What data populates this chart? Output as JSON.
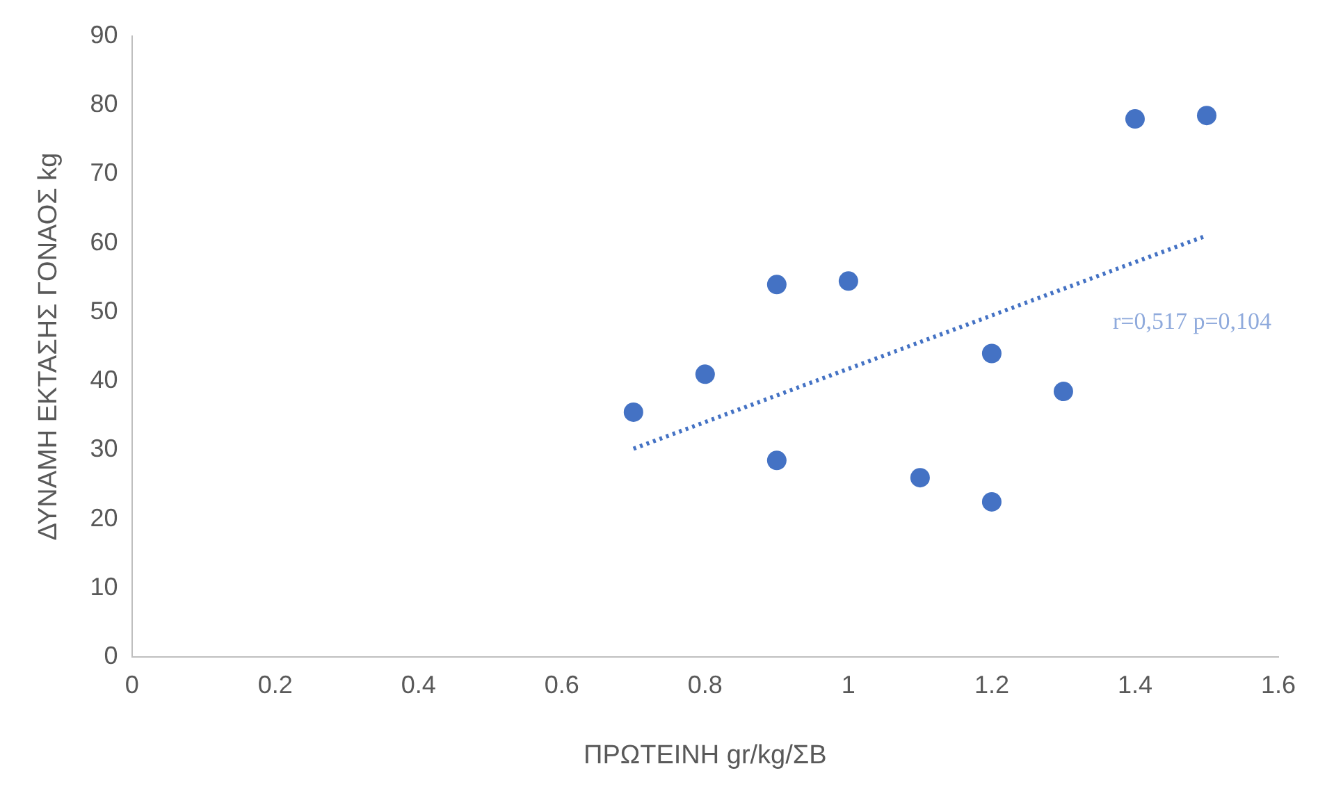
{
  "chart_data": {
    "type": "scatter",
    "xlabel": "ΠΡΩΤΕΙΝΗ gr/kg/ΣΒ",
    "ylabel": "ΔΥΝΑΜΗ ΕΚΤΑΣΗΣ ΓΟΝΑΟΣ kg",
    "series": [
      {
        "type": "scatter",
        "color": "#4472c4",
        "marker": "circle",
        "x": [
          0.7,
          0.8,
          0.9,
          0.9,
          1.0,
          1.1,
          1.2,
          1.2,
          1.3,
          1.4,
          1.5
        ],
        "values": [
          35.5,
          41,
          54,
          28.5,
          54.5,
          26,
          44,
          22.5,
          38.5,
          78,
          78.5
        ]
      },
      {
        "type": "line",
        "color": "#4472c4",
        "marker": "none",
        "line_style": "dotted",
        "x": [
          0.7,
          1.5
        ],
        "values": [
          30.2,
          61.1
        ]
      }
    ],
    "annotations": [
      "r=0,517 p=0,104"
    ],
    "xlim": [
      0,
      1.6
    ],
    "xticks": [
      0,
      0.2,
      0.4,
      0.6,
      0.8,
      1,
      1.2,
      1.4,
      1.6
    ],
    "ylim": [
      0,
      90
    ],
    "yticks": [
      0,
      10,
      20,
      30,
      40,
      50,
      60,
      70,
      80,
      90
    ],
    "grid": false,
    "legend": false
  }
}
